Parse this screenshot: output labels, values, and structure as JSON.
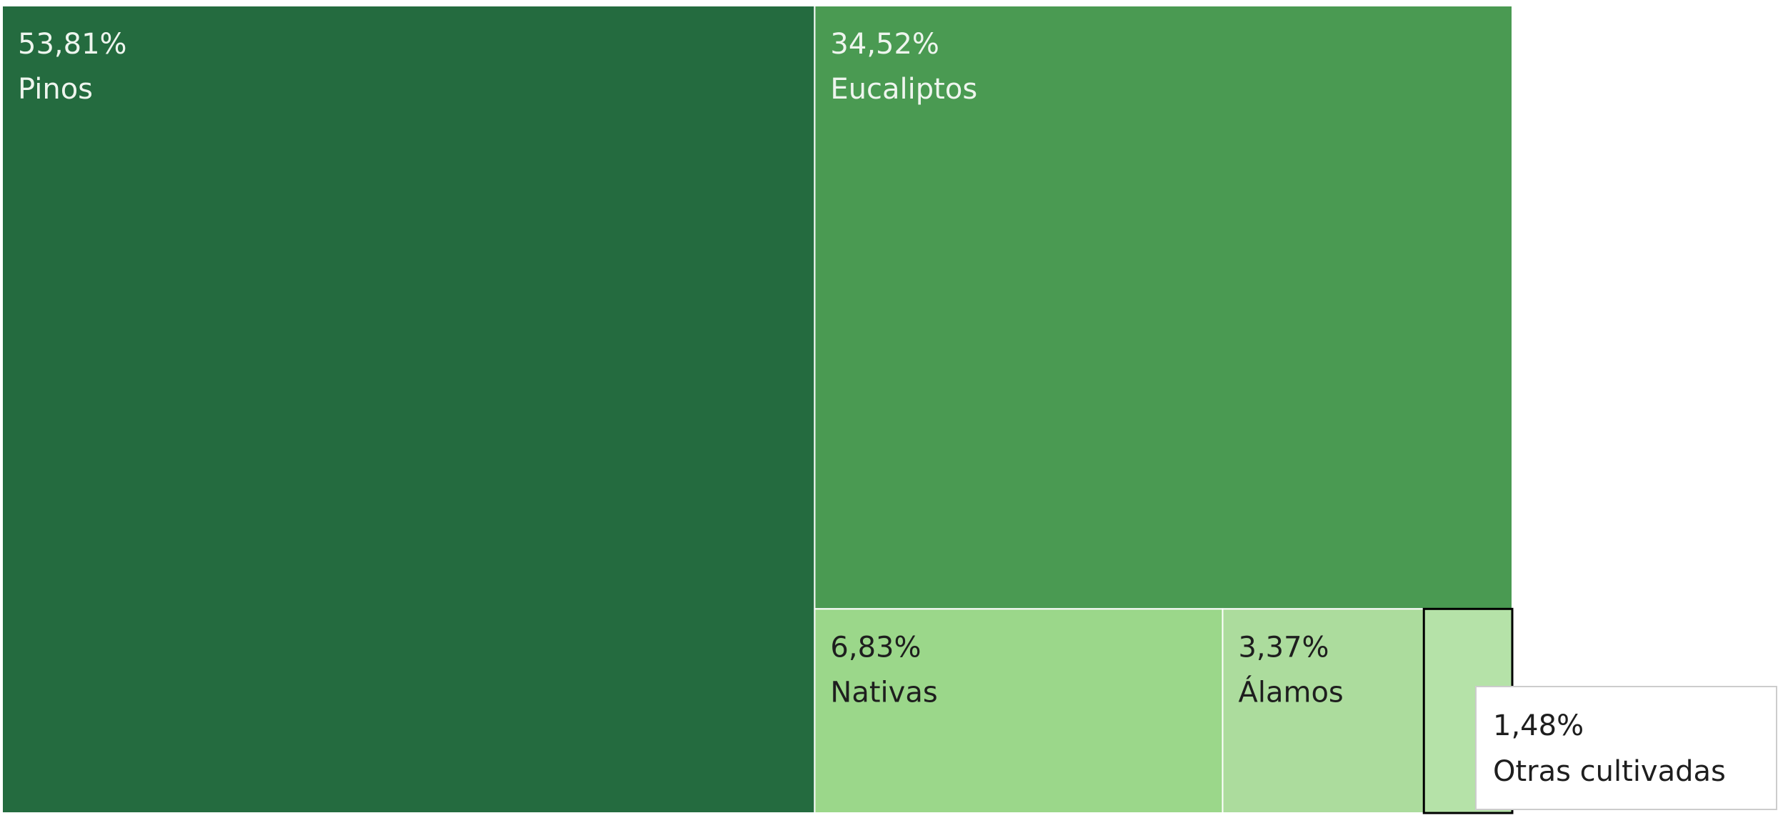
{
  "chart_data": {
    "type": "treemap",
    "categories": [
      "Pinos",
      "Eucaliptos",
      "Nativas",
      "Álamos",
      "Otras cultivadas"
    ],
    "values": [
      53.81,
      34.52,
      6.83,
      3.37,
      1.48
    ],
    "value_labels": [
      "53,81%",
      "34,52%",
      "6,83%",
      "3,37%",
      "1,48%"
    ],
    "colors": [
      "#246b3f",
      "#4a9a52",
      "#9bd78a",
      "#acdc9d",
      "#b5e2a8"
    ]
  }
}
